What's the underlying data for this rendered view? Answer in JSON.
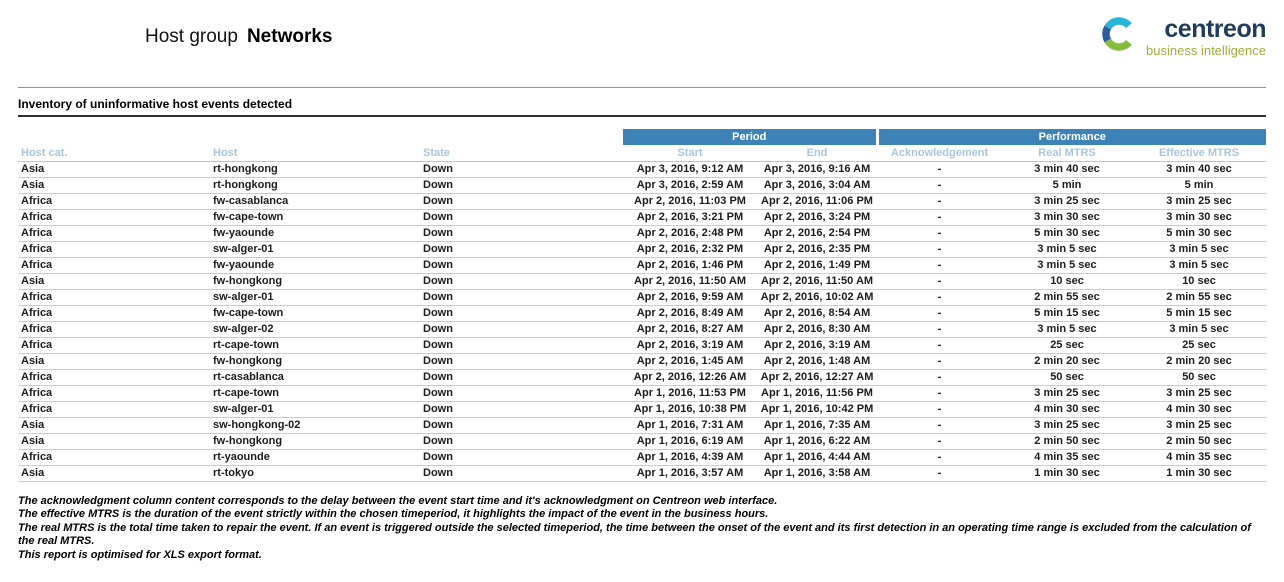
{
  "header": {
    "title_prefix": "Host group",
    "title_name": "Networks",
    "logo": {
      "name": "centreon",
      "tagline": "business intelligence"
    }
  },
  "section_title": "Inventory of uninformative host events detected",
  "table": {
    "group_headers": {
      "period": "Period",
      "performance": "Performance"
    },
    "columns": [
      "Host cat.",
      "Host",
      "State",
      "Start",
      "End",
      "Acknowledgement",
      "Real MTRS",
      "Effective MTRS"
    ],
    "rows": [
      [
        "Asia",
        "rt-hongkong",
        "Down",
        "Apr 3, 2016, 9:12 AM",
        "Apr 3, 2016, 9:16 AM",
        "-",
        "3 min 40 sec",
        "3 min 40 sec"
      ],
      [
        "Asia",
        "rt-hongkong",
        "Down",
        "Apr 3, 2016, 2:59 AM",
        "Apr 3, 2016, 3:04 AM",
        "-",
        "5 min",
        "5 min"
      ],
      [
        "Africa",
        "fw-casablanca",
        "Down",
        "Apr 2, 2016, 11:03 PM",
        "Apr 2, 2016, 11:06 PM",
        "-",
        "3 min 25 sec",
        "3 min 25 sec"
      ],
      [
        "Africa",
        "fw-cape-town",
        "Down",
        "Apr 2, 2016, 3:21 PM",
        "Apr 2, 2016, 3:24 PM",
        "-",
        "3 min 30 sec",
        "3 min 30 sec"
      ],
      [
        "Africa",
        "fw-yaounde",
        "Down",
        "Apr 2, 2016, 2:48 PM",
        "Apr 2, 2016, 2:54 PM",
        "-",
        "5 min 30 sec",
        "5 min 30 sec"
      ],
      [
        "Africa",
        "sw-alger-01",
        "Down",
        "Apr 2, 2016, 2:32 PM",
        "Apr 2, 2016, 2:35 PM",
        "-",
        "3 min 5 sec",
        "3 min 5 sec"
      ],
      [
        "Africa",
        "fw-yaounde",
        "Down",
        "Apr 2, 2016, 1:46 PM",
        "Apr 2, 2016, 1:49 PM",
        "-",
        "3 min 5 sec",
        "3 min 5 sec"
      ],
      [
        "Asia",
        "fw-hongkong",
        "Down",
        "Apr 2, 2016, 11:50 AM",
        "Apr 2, 2016, 11:50 AM",
        "-",
        "10 sec",
        "10 sec"
      ],
      [
        "Africa",
        "sw-alger-01",
        "Down",
        "Apr 2, 2016, 9:59 AM",
        "Apr 2, 2016, 10:02 AM",
        "-",
        "2 min 55 sec",
        "2 min 55 sec"
      ],
      [
        "Africa",
        "fw-cape-town",
        "Down",
        "Apr 2, 2016, 8:49 AM",
        "Apr 2, 2016, 8:54 AM",
        "-",
        "5 min 15 sec",
        "5 min 15 sec"
      ],
      [
        "Africa",
        "sw-alger-02",
        "Down",
        "Apr 2, 2016, 8:27 AM",
        "Apr 2, 2016, 8:30 AM",
        "-",
        "3 min 5 sec",
        "3 min 5 sec"
      ],
      [
        "Africa",
        "rt-cape-town",
        "Down",
        "Apr 2, 2016, 3:19 AM",
        "Apr 2, 2016, 3:19 AM",
        "-",
        "25 sec",
        "25 sec"
      ],
      [
        "Asia",
        "fw-hongkong",
        "Down",
        "Apr 2, 2016, 1:45 AM",
        "Apr 2, 2016, 1:48 AM",
        "-",
        "2 min 20 sec",
        "2 min 20 sec"
      ],
      [
        "Africa",
        "rt-casablanca",
        "Down",
        "Apr 2, 2016, 12:26 AM",
        "Apr 2, 2016, 12:27 AM",
        "-",
        "50 sec",
        "50 sec"
      ],
      [
        "Africa",
        "rt-cape-town",
        "Down",
        "Apr 1, 2016, 11:53 PM",
        "Apr 1, 2016, 11:56 PM",
        "-",
        "3 min 25 sec",
        "3 min 25 sec"
      ],
      [
        "Africa",
        "sw-alger-01",
        "Down",
        "Apr 1, 2016, 10:38 PM",
        "Apr 1, 2016, 10:42 PM",
        "-",
        "4 min 30 sec",
        "4 min 30 sec"
      ],
      [
        "Asia",
        "sw-hongkong-02",
        "Down",
        "Apr 1, 2016, 7:31 AM",
        "Apr 1, 2016, 7:35 AM",
        "-",
        "3 min 25 sec",
        "3 min 25 sec"
      ],
      [
        "Asia",
        "fw-hongkong",
        "Down",
        "Apr 1, 2016, 6:19 AM",
        "Apr 1, 2016, 6:22 AM",
        "-",
        "2 min 50 sec",
        "2 min 50 sec"
      ],
      [
        "Africa",
        "rt-yaounde",
        "Down",
        "Apr 1, 2016, 4:39 AM",
        "Apr 1, 2016, 4:44 AM",
        "-",
        "4 min 35 sec",
        "4 min 35 sec"
      ],
      [
        "Asia",
        "rt-tokyo",
        "Down",
        "Apr 1, 2016, 3:57 AM",
        "Apr 1, 2016, 3:58 AM",
        "-",
        "1 min 30 sec",
        "1 min 30 sec"
      ]
    ]
  },
  "footnotes": [
    "The acknowledgment column content corresponds to the delay between the event start time and it's acknowledgment on Centreon web interface.",
    "The effective MTRS is the duration of the event strictly within the chosen timeperiod, it highlights the impact of the event in the business hours.",
    "The real MTRS is the total time taken to repair the event. If an event is triggered outside the selected timeperiod, the time between the onset of the event and its first detection in an operating time range  is excluded from the calculation of the real MTRS.",
    "This report is optimised for XLS export format."
  ],
  "colors": {
    "group_header_bg": "#3d83b8",
    "column_header_text": "#a9c5de",
    "state_down": "#cc0033",
    "row_border": "#cbcbcb",
    "logo_wordmark": "#1f3d5a",
    "logo_tagline": "#9dad3a",
    "logo_icon_cyan": "#29b5d8",
    "logo_icon_blue": "#2d5ca0",
    "logo_icon_green": "#86bd3e"
  }
}
